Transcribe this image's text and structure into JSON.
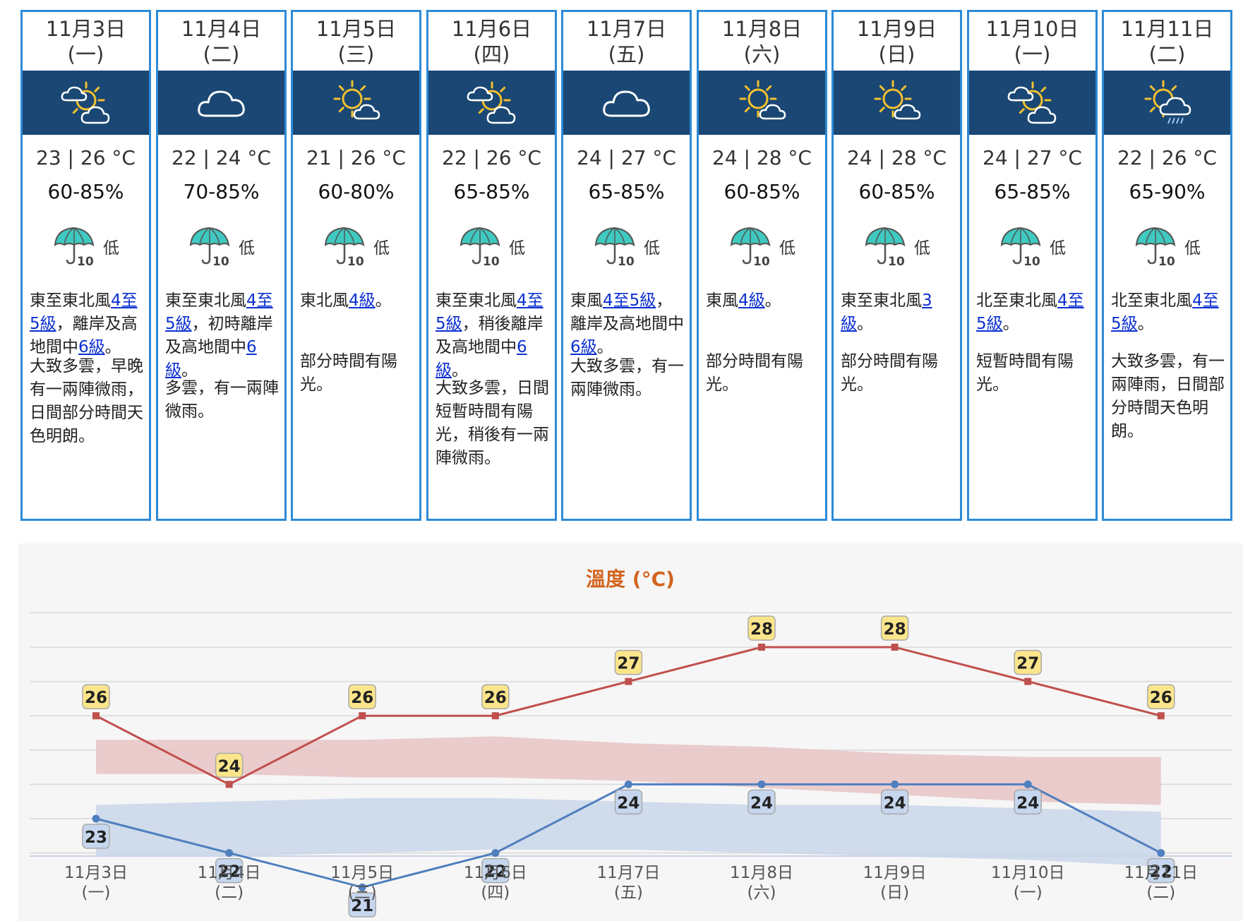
{
  "days": [
    {
      "date": "11月3日",
      "weekday": "(一)",
      "icon": "partly-cloudy-sun-icon",
      "temp": "23 | 26 °C",
      "rh": "60-85%",
      "psr": "低",
      "wind": [
        {
          "t": "東至東北風"
        },
        {
          "t": "4至5級",
          "link": true
        },
        {
          "t": "，離岸及高地間中"
        },
        {
          "t": "6級",
          "link": true
        },
        {
          "t": "。"
        }
      ],
      "weather": "大致多雲，早晚有一兩陣微雨，日間部分時間天色明朗。",
      "weather_top": 500
    },
    {
      "date": "11月4日",
      "weekday": "(二)",
      "icon": "cloudy-icon",
      "temp": "22 | 24 °C",
      "rh": "70-85%",
      "psr": "低",
      "wind": [
        {
          "t": "東至東北風"
        },
        {
          "t": "4至5級",
          "link": true
        },
        {
          "t": "，初時離岸及高地間中"
        },
        {
          "t": "6級",
          "link": true
        },
        {
          "t": "。"
        }
      ],
      "weather": "多雲，有一兩陣微雨。",
      "weather_top": 531
    },
    {
      "date": "11月5日",
      "weekday": "(三)",
      "icon": "sunny-periods-icon",
      "temp": "21 | 26 °C",
      "rh": "60-80%",
      "psr": "低",
      "wind": [
        {
          "t": "東北風"
        },
        {
          "t": "4級",
          "link": true
        },
        {
          "t": "。"
        }
      ],
      "weather": "部分時間有陽光。",
      "weather_top": 493
    },
    {
      "date": "11月6日",
      "weekday": "(四)",
      "icon": "partly-cloudy-sun-icon",
      "temp": "22 | 26 °C",
      "rh": "65-85%",
      "psr": "低",
      "wind": [
        {
          "t": "東至東北風"
        },
        {
          "t": "4至5級",
          "link": true
        },
        {
          "t": "，稍後離岸及高地間中"
        },
        {
          "t": "6級",
          "link": true
        },
        {
          "t": "。"
        }
      ],
      "weather": "大致多雲，日間短暫時間有陽光，稍後有一兩陣微雨。",
      "weather_top": 531
    },
    {
      "date": "11月7日",
      "weekday": "(五)",
      "icon": "cloudy-icon",
      "temp": "24 | 27 °C",
      "rh": "65-85%",
      "psr": "低",
      "wind": [
        {
          "t": "東風"
        },
        {
          "t": "4至5級",
          "link": true
        },
        {
          "t": "，離岸及高地間中"
        },
        {
          "t": "6級",
          "link": true
        },
        {
          "t": "。"
        }
      ],
      "weather": "大致多雲，有一兩陣微雨。",
      "weather_top": 500
    },
    {
      "date": "11月8日",
      "weekday": "(六)",
      "icon": "sunny-periods-icon",
      "temp": "24 | 28 °C",
      "rh": "60-85%",
      "psr": "低",
      "wind": [
        {
          "t": "東風"
        },
        {
          "t": "4級",
          "link": true
        },
        {
          "t": "。"
        }
      ],
      "weather": "部分時間有陽光。",
      "weather_top": 493
    },
    {
      "date": "11月9日",
      "weekday": "(日)",
      "icon": "sunny-periods-icon",
      "temp": "24 | 28 °C",
      "rh": "60-85%",
      "psr": "低",
      "wind": [
        {
          "t": "東至東北風"
        },
        {
          "t": "3級",
          "link": true
        },
        {
          "t": "。"
        }
      ],
      "weather": "部分時間有陽光。",
      "weather_top": 493
    },
    {
      "date": "11月10日",
      "weekday": "(一)",
      "icon": "partly-cloudy-sun-icon",
      "temp": "24 | 27 °C",
      "rh": "65-85%",
      "psr": "低",
      "wind": [
        {
          "t": "北至東北風"
        },
        {
          "t": "4至5級",
          "link": true
        },
        {
          "t": "。"
        }
      ],
      "weather": "短暫時間有陽光。",
      "weather_top": 493
    },
    {
      "date": "11月11日",
      "weekday": "(二)",
      "icon": "sun-shower-icon",
      "temp": "22 | 26 °C",
      "rh": "65-90%",
      "psr": "低",
      "wind": [
        {
          "t": "北至東北風"
        },
        {
          "t": "4至5級",
          "link": true
        },
        {
          "t": "。"
        }
      ],
      "weather": "大致多雲，有一兩陣雨，日間部分時間天色明朗。",
      "weather_top": 493
    }
  ],
  "chart_data": {
    "type": "line",
    "title": "溫度 (°C)",
    "categories": [
      "11月3日",
      "11月4日",
      "11月5日",
      "11月6日",
      "11月7日",
      "11月8日",
      "11月9日",
      "11月10日",
      "11月11日"
    ],
    "weekdays": [
      "(一)",
      "(二)",
      "(三)",
      "(四)",
      "(五)",
      "(六)",
      "(日)",
      "(一)",
      "(二)"
    ],
    "series": [
      {
        "key": "max",
        "values": [
          26,
          24,
          26,
          26,
          27,
          28,
          28,
          27,
          26
        ],
        "color": "#c0504d",
        "band_color": "#e8c4c6",
        "label_bg": "#fbe58b"
      },
      {
        "key": "min",
        "values": [
          23,
          22,
          21,
          22,
          24,
          24,
          24,
          24,
          22
        ],
        "color": "#4f7fbf",
        "band_color": "#c9d6ea",
        "label_bg": "#c5d6ee"
      }
    ],
    "bands": [
      {
        "key": "max-range",
        "upper": [
          25.3,
          25.3,
          25.3,
          25.4,
          25.2,
          25.1,
          24.9,
          24.8,
          24.8
        ],
        "lower": [
          24.3,
          24.3,
          24.2,
          24.2,
          24.1,
          23.9,
          23.7,
          23.5,
          23.4
        ]
      },
      {
        "key": "min-range",
        "upper": [
          23.4,
          23.5,
          23.6,
          23.6,
          23.5,
          23.4,
          23.4,
          23.3,
          23.2
        ],
        "lower": [
          21.9,
          21.9,
          22.0,
          22.1,
          22.1,
          22.0,
          21.9,
          21.8,
          21.6
        ]
      }
    ],
    "ylim": [
      19,
      30
    ],
    "grid": true,
    "legend": "none"
  },
  "colors": {
    "card_border": "#2e8ad6",
    "icon_band": "#1a4774",
    "link": "#0b2fd1",
    "title": "#d2651f"
  }
}
